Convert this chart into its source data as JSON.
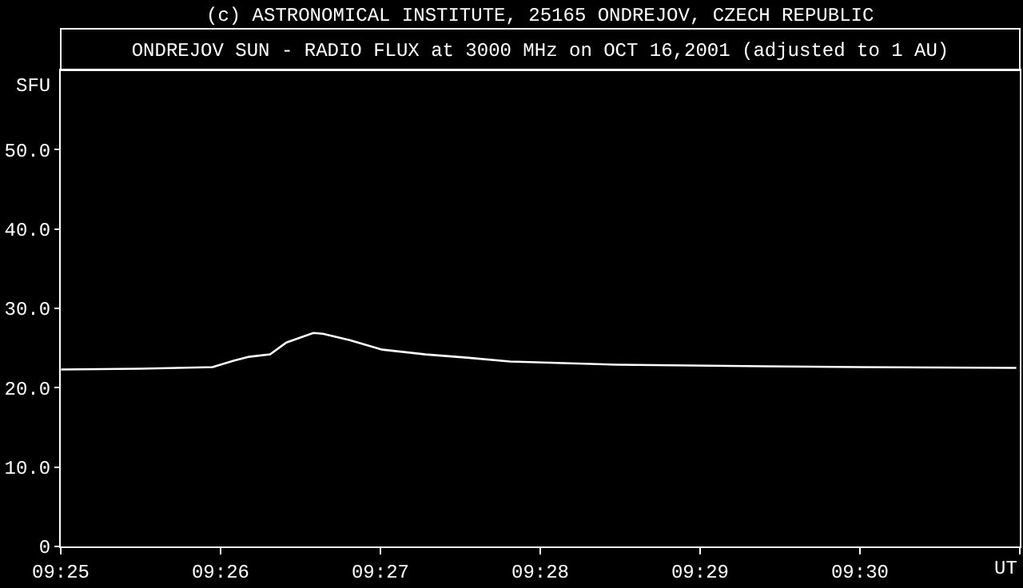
{
  "chart_data": {
    "type": "line",
    "title": "ONDREJOV SUN - RADIO FLUX at 3000 MHz on OCT 16,2001 (adjusted to 1 AU)",
    "subtitle": "(c) ASTRONOMICAL INSTITUTE, 25165 ONDREJOV, CZECH REPUBLIC",
    "xlabel": "UT",
    "ylabel": "SFU",
    "x": [
      9.4167,
      9.425,
      9.4325,
      9.4347,
      9.4363,
      9.4385,
      9.4402,
      9.443,
      9.444,
      9.4468,
      9.4502,
      9.4547,
      9.459,
      9.4635,
      9.4747,
      9.4902,
      9.5,
      9.5163
    ],
    "series": [
      {
        "color": "#ffffff",
        "values": [
          22.3,
          22.4,
          22.6,
          23.4,
          23.9,
          24.2,
          25.7,
          26.9,
          26.8,
          26.0,
          24.8,
          24.2,
          23.8,
          23.3,
          22.9,
          22.7,
          22.6,
          22.5
        ]
      }
    ],
    "xlim": [
      9.41667,
      9.51667
    ],
    "ylim": [
      0,
      60
    ],
    "xticks": [
      {
        "value": 9.41667,
        "label": "09:25"
      },
      {
        "value": 9.43333,
        "label": "09:26"
      },
      {
        "value": 9.45,
        "label": "09:27"
      },
      {
        "value": 9.46667,
        "label": "09:28"
      },
      {
        "value": 9.48333,
        "label": "09:29"
      },
      {
        "value": 9.5,
        "label": "09:30"
      },
      {
        "value": 9.51667,
        "label": null
      }
    ],
    "yticks": [
      0,
      {
        "value": 10,
        "label": "10.0"
      },
      {
        "value": 20,
        "label": "20.0"
      },
      {
        "value": 30,
        "label": "30.0"
      },
      {
        "value": 40,
        "label": "40.0"
      },
      {
        "value": 50,
        "label": "50.0"
      }
    ],
    "grid": false,
    "line_style": "solid"
  }
}
